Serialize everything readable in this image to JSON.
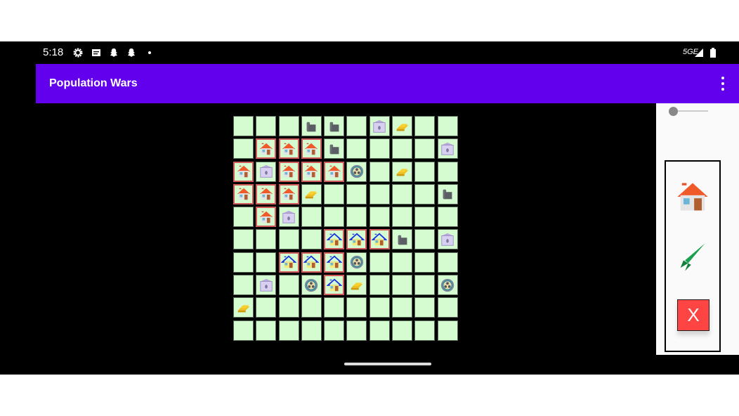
{
  "status_bar": {
    "time": "5:18",
    "icons": [
      "gear-icon",
      "news-icon",
      "snapchat-icon",
      "snapchat-icon",
      "dot-icon"
    ],
    "network": "5GE",
    "right_icons": [
      "signal-icon",
      "battery-icon"
    ]
  },
  "app_bar": {
    "title": "Population Wars",
    "menu_icon": "more-vert-icon"
  },
  "legend": {
    ".": "empty",
    "R": "red-house",
    "B": "blue-house",
    "S": "silo",
    "F": "oil-tank-building",
    "G": "gold-bars",
    "N": "nuclear-plant"
  },
  "grid": [
    ".  .  .  S  S  .  F  G  .  .",
    ".  R* R* R* S  .  .  .  .  F",
    "R* F  R* R* R* N  .  G  .  .",
    "R* R* R* G  .  .  .  .  .  S",
    ".  R* F  .  .  .  .  .  .  .",
    ".  .  .  .  B* B* B* S  .  F",
    ".  .  B* B* B* N  .  .  .  .",
    ".  F  .  N  B* G  .  .  .  N",
    "G  .  .  .  .  .  .  .  .  .",
    ".  .  .  .  .  .  .  .  .  ."
  ],
  "panel": {
    "slider_value": 0,
    "tools": [
      "house-icon",
      "missile-icon"
    ],
    "close_label": "X"
  },
  "colors": {
    "app_bar": "#6200ee",
    "cell": "#d4fcd0",
    "owned_border": "#d05a5a",
    "close_button": "#ff4444"
  }
}
